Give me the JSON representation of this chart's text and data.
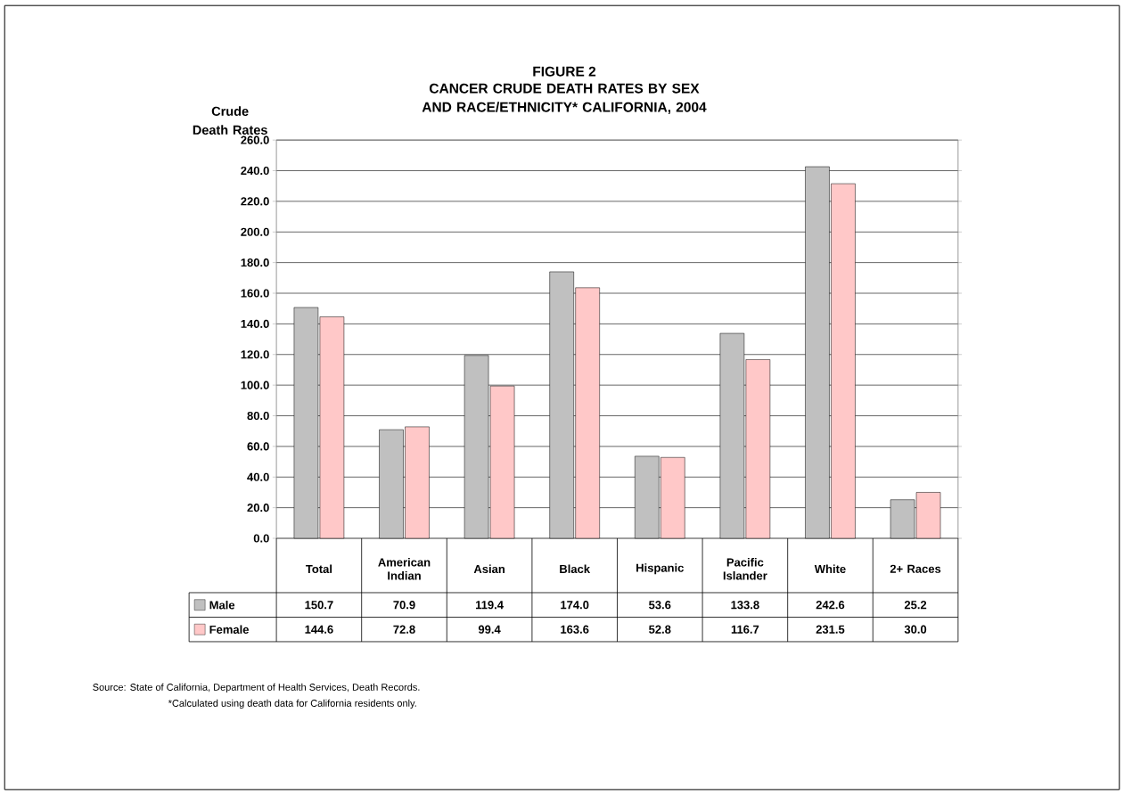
{
  "chart_data": {
    "type": "bar",
    "title": "FIGURE 2",
    "subtitle": "CANCER CRUDE DEATH RATES BY SEX AND RACE/ETHNICITY* CALIFORNIA, 2004",
    "ylabel": "Crude Death Rates",
    "categories": [
      "Total",
      "American Indian",
      "Asian",
      "Black",
      "Hispanic",
      "Pacific Islander",
      "White",
      "2+ Races"
    ],
    "series": [
      {
        "name": "Male",
        "color": "#c0c0c0",
        "values": [
          150.7,
          70.9,
          119.4,
          174.0,
          53.6,
          133.8,
          242.6,
          25.2
        ],
        "value_labels": [
          "150.7",
          "70.9",
          "119.4",
          "174.0",
          "53.6",
          "133.8",
          "242.6",
          "25.2"
        ]
      },
      {
        "name": "Female",
        "color": "#ffc8c8",
        "values": [
          144.6,
          72.8,
          99.4,
          163.6,
          52.8,
          116.7,
          231.5,
          30.0
        ],
        "value_labels": [
          "144.6",
          "72.8",
          "99.4",
          "163.6",
          "52.8",
          "116.7",
          "231.5",
          "30.0"
        ]
      }
    ],
    "ylim": [
      0,
      260
    ],
    "yticks": [
      {
        "value": 0,
        "label": "0.0"
      },
      {
        "value": 20,
        "label": "20.0"
      },
      {
        "value": 40,
        "label": "40.0"
      },
      {
        "value": 60,
        "label": "60.0"
      },
      {
        "value": 80,
        "label": "80.0"
      },
      {
        "value": 100,
        "label": "100.0"
      },
      {
        "value": 120,
        "label": "120.0"
      },
      {
        "value": 140,
        "label": "140.0"
      },
      {
        "value": 160,
        "label": "160.0"
      },
      {
        "value": 180,
        "label": "180.0"
      },
      {
        "value": 200,
        "label": "200.0"
      },
      {
        "value": 220,
        "label": "220.0"
      },
      {
        "value": 240,
        "label": "240.0"
      },
      {
        "value": 260,
        "label": "260.0"
      }
    ],
    "grid": "y",
    "legend": "bottom left",
    "annotations": [
      "Source:  State of California, Department of Health Services, Death Records.",
      "*Calculated using death data for California residents only."
    ]
  }
}
